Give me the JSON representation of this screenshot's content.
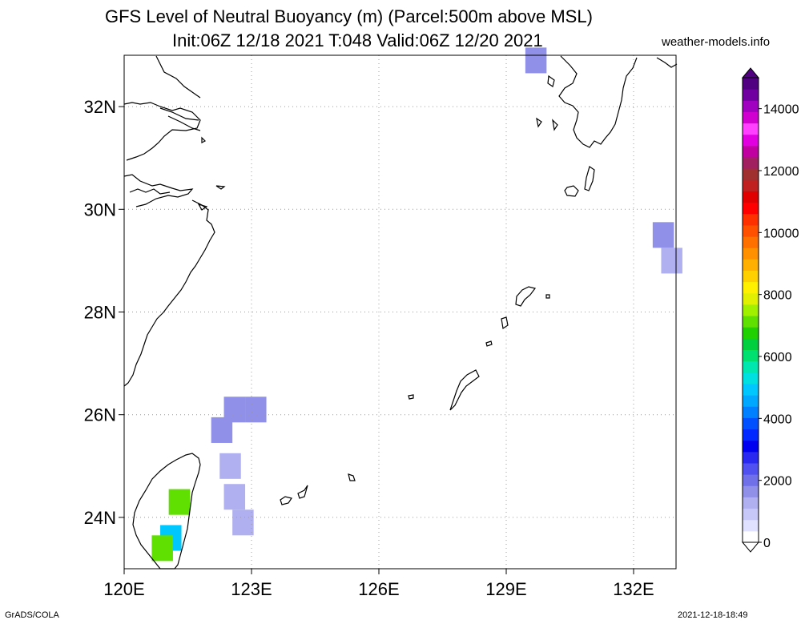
{
  "title": {
    "line1": "GFS Level of Neutral Buoyancy (m) (Parcel:500m above MSL)",
    "line2": "Init:06Z 12/18 2021 T:048 Valid:06Z 12/20 2021"
  },
  "source": "weather-models.info",
  "footer": {
    "left": "GrADS/COLA",
    "right": "2021-12-18-18:49"
  },
  "map": {
    "lon_range": [
      120,
      133
    ],
    "lat_range": [
      23,
      33
    ],
    "x_ticks": [
      {
        "value": 120,
        "label": "120E"
      },
      {
        "value": 123,
        "label": "123E"
      },
      {
        "value": 126,
        "label": "126E"
      },
      {
        "value": 129,
        "label": "129E"
      },
      {
        "value": 132,
        "label": "132E"
      }
    ],
    "y_ticks": [
      {
        "value": 32,
        "label": "32N"
      },
      {
        "value": 30,
        "label": "30N"
      },
      {
        "value": 28,
        "label": "28N"
      },
      {
        "value": 26,
        "label": "26N"
      },
      {
        "value": 24,
        "label": "24N"
      }
    ],
    "grid": true
  },
  "colorbar": {
    "min": 0,
    "max": 15000,
    "labels": [
      {
        "value": 0,
        "label": "0"
      },
      {
        "value": 2000,
        "label": "2000"
      },
      {
        "value": 4000,
        "label": "4000"
      },
      {
        "value": 6000,
        "label": "6000"
      },
      {
        "value": 8000,
        "label": "8000"
      },
      {
        "value": 10000,
        "label": "10000"
      },
      {
        "value": 12000,
        "label": "12000"
      },
      {
        "value": 14000,
        "label": "14000"
      }
    ],
    "colors": [
      "#ffffff",
      "#e0e0ff",
      "#c8c8f8",
      "#b0b0f0",
      "#9090e8",
      "#7070e8",
      "#5050f0",
      "#2828f0",
      "#0000f0",
      "#0028ff",
      "#0050ff",
      "#0080ff",
      "#00a8ff",
      "#00c8ff",
      "#00e0e0",
      "#00e8b0",
      "#00e070",
      "#00d040",
      "#20d000",
      "#60e000",
      "#a0f000",
      "#e0f000",
      "#fff000",
      "#ffd000",
      "#ffb000",
      "#ff9000",
      "#ff7000",
      "#ff5000",
      "#ff3000",
      "#ff0000",
      "#e00000",
      "#c02020",
      "#a03030",
      "#a02060",
      "#c000a0",
      "#e000e0",
      "#ff40ff",
      "#d000d0",
      "#a000c0",
      "#7000a0",
      "#500080"
    ]
  },
  "chart_data": {
    "type": "heatmap",
    "title": "GFS Level of Neutral Buoyancy (m) (Parcel:500m above MSL)",
    "units": "m",
    "cells": [
      {
        "lon": 122.6,
        "lat": 26.1,
        "value": 1800
      },
      {
        "lon": 122.3,
        "lat": 25.7,
        "value": 1500
      },
      {
        "lon": 123.1,
        "lat": 26.1,
        "value": 1800
      },
      {
        "lon": 122.5,
        "lat": 25.0,
        "value": 1200
      },
      {
        "lon": 122.6,
        "lat": 24.4,
        "value": 1100
      },
      {
        "lon": 122.8,
        "lat": 23.9,
        "value": 1100
      },
      {
        "lon": 121.3,
        "lat": 24.3,
        "value": 7000
      },
      {
        "lon": 121.1,
        "lat": 23.6,
        "value": 5000
      },
      {
        "lon": 120.9,
        "lat": 23.4,
        "value": 7000
      },
      {
        "lon": 132.7,
        "lat": 29.5,
        "value": 1800
      },
      {
        "lon": 132.9,
        "lat": 29.0,
        "value": 1300
      },
      {
        "lon": 129.7,
        "lat": 32.9,
        "value": 1500
      }
    ]
  }
}
